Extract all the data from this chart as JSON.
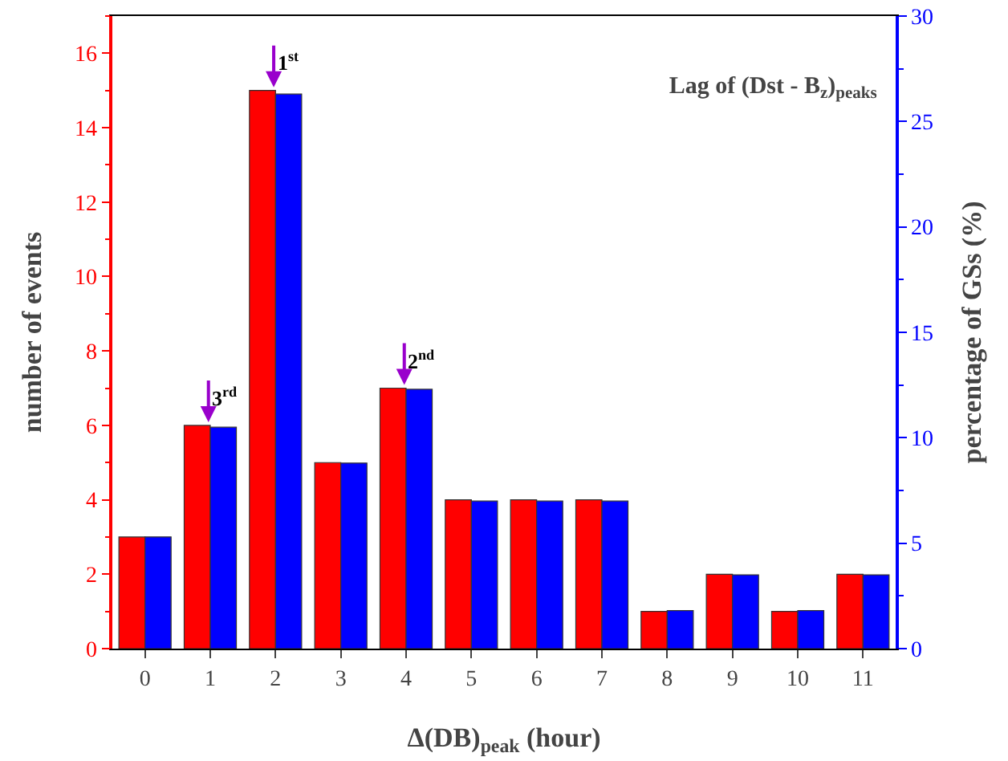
{
  "chart_data": {
    "type": "bar",
    "title": "Lag of (Dst - B$_{z}$)$_{peaks}$",
    "xlabel": "Δ(DB)$_{peak}$ (hour)",
    "ylabel": "number of events",
    "y2label": "percentage of GSs (%)",
    "categories": [
      "0",
      "1",
      "2",
      "3",
      "4",
      "5",
      "6",
      "7",
      "8",
      "9",
      "10",
      "11"
    ],
    "series": [
      {
        "color": "#ff0000",
        "values": [
          3,
          6,
          15,
          5,
          7,
          4,
          4,
          4,
          1,
          2,
          1,
          2
        ]
      },
      {
        "color": "#0000ff",
        "axis": "y2",
        "values": [
          5.3,
          10.5,
          26.3,
          8.8,
          12.3,
          7.0,
          7.0,
          7.0,
          1.8,
          3.5,
          1.8,
          3.5
        ]
      }
    ],
    "ylim": [
      0,
      17
    ],
    "yticks": [
      0,
      2,
      4,
      6,
      8,
      10,
      12,
      14,
      16
    ],
    "y2lim": [
      0,
      30
    ],
    "y2ticks": [
      0,
      5,
      10,
      15,
      20,
      25,
      30
    ],
    "annotations": [
      {
        "text": "1$^{st}$",
        "x": "2",
        "y": 15
      },
      {
        "text": "2$^{nd}$",
        "x": "4",
        "y": 7
      },
      {
        "text": "3$^{rd}$",
        "x": "1",
        "y": 6
      }
    ],
    "grid": false
  }
}
